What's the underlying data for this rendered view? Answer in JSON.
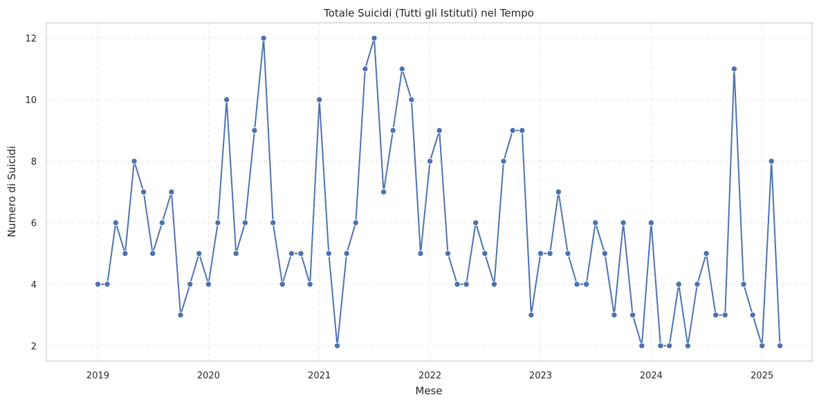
{
  "chart_data": {
    "type": "line",
    "title": "Totale Suicidi (Tutti gli Istituti) nel Tempo",
    "xlabel": "Mese",
    "ylabel": "Numero di Suicidi",
    "x_ticks": [
      "2019",
      "2020",
      "2021",
      "2022",
      "2023",
      "2024",
      "2025"
    ],
    "y_ticks": [
      2,
      4,
      6,
      8,
      10,
      12
    ],
    "xlim": [
      "2018-07-15",
      "2025-06-15"
    ],
    "ylim": [
      1.5,
      12.5
    ],
    "grid": true,
    "line_color": "#4c72b0",
    "x": [
      "2019-01",
      "2019-02",
      "2019-03",
      "2019-04",
      "2019-05",
      "2019-06",
      "2019-07",
      "2019-08",
      "2019-09",
      "2019-10",
      "2019-11",
      "2019-12",
      "2020-01",
      "2020-02",
      "2020-03",
      "2020-04",
      "2020-05",
      "2020-06",
      "2020-07",
      "2020-08",
      "2020-09",
      "2020-10",
      "2020-11",
      "2020-12",
      "2021-01",
      "2021-02",
      "2021-03",
      "2021-04",
      "2021-05",
      "2021-06",
      "2021-07",
      "2021-08",
      "2021-09",
      "2021-10",
      "2021-11",
      "2021-12",
      "2022-01",
      "2022-02",
      "2022-03",
      "2022-04",
      "2022-05",
      "2022-06",
      "2022-07",
      "2022-08",
      "2022-09",
      "2022-10",
      "2022-11",
      "2022-12",
      "2023-01",
      "2023-02",
      "2023-03",
      "2023-04",
      "2023-05",
      "2023-06",
      "2023-07",
      "2023-08",
      "2023-09",
      "2023-10",
      "2023-11",
      "2023-12",
      "2024-01",
      "2024-02",
      "2024-03",
      "2024-04",
      "2024-05",
      "2024-06",
      "2024-07",
      "2024-08",
      "2024-09",
      "2024-10",
      "2024-11",
      "2024-12",
      "2025-01",
      "2025-02",
      "2025-03"
    ],
    "values": [
      4,
      4,
      6,
      5,
      8,
      7,
      5,
      6,
      7,
      3,
      4,
      5,
      4,
      6,
      10,
      5,
      6,
      9,
      12,
      6,
      4,
      5,
      5,
      4,
      10,
      5,
      2,
      5,
      6,
      11,
      12,
      7,
      9,
      11,
      10,
      5,
      8,
      9,
      5,
      4,
      4,
      6,
      5,
      4,
      8,
      9,
      9,
      3,
      5,
      5,
      7,
      5,
      4,
      4,
      6,
      5,
      3,
      6,
      3,
      2,
      6,
      2,
      2,
      4,
      2,
      4,
      5,
      3,
      3,
      11,
      4,
      3,
      2,
      8,
      2
    ]
  }
}
